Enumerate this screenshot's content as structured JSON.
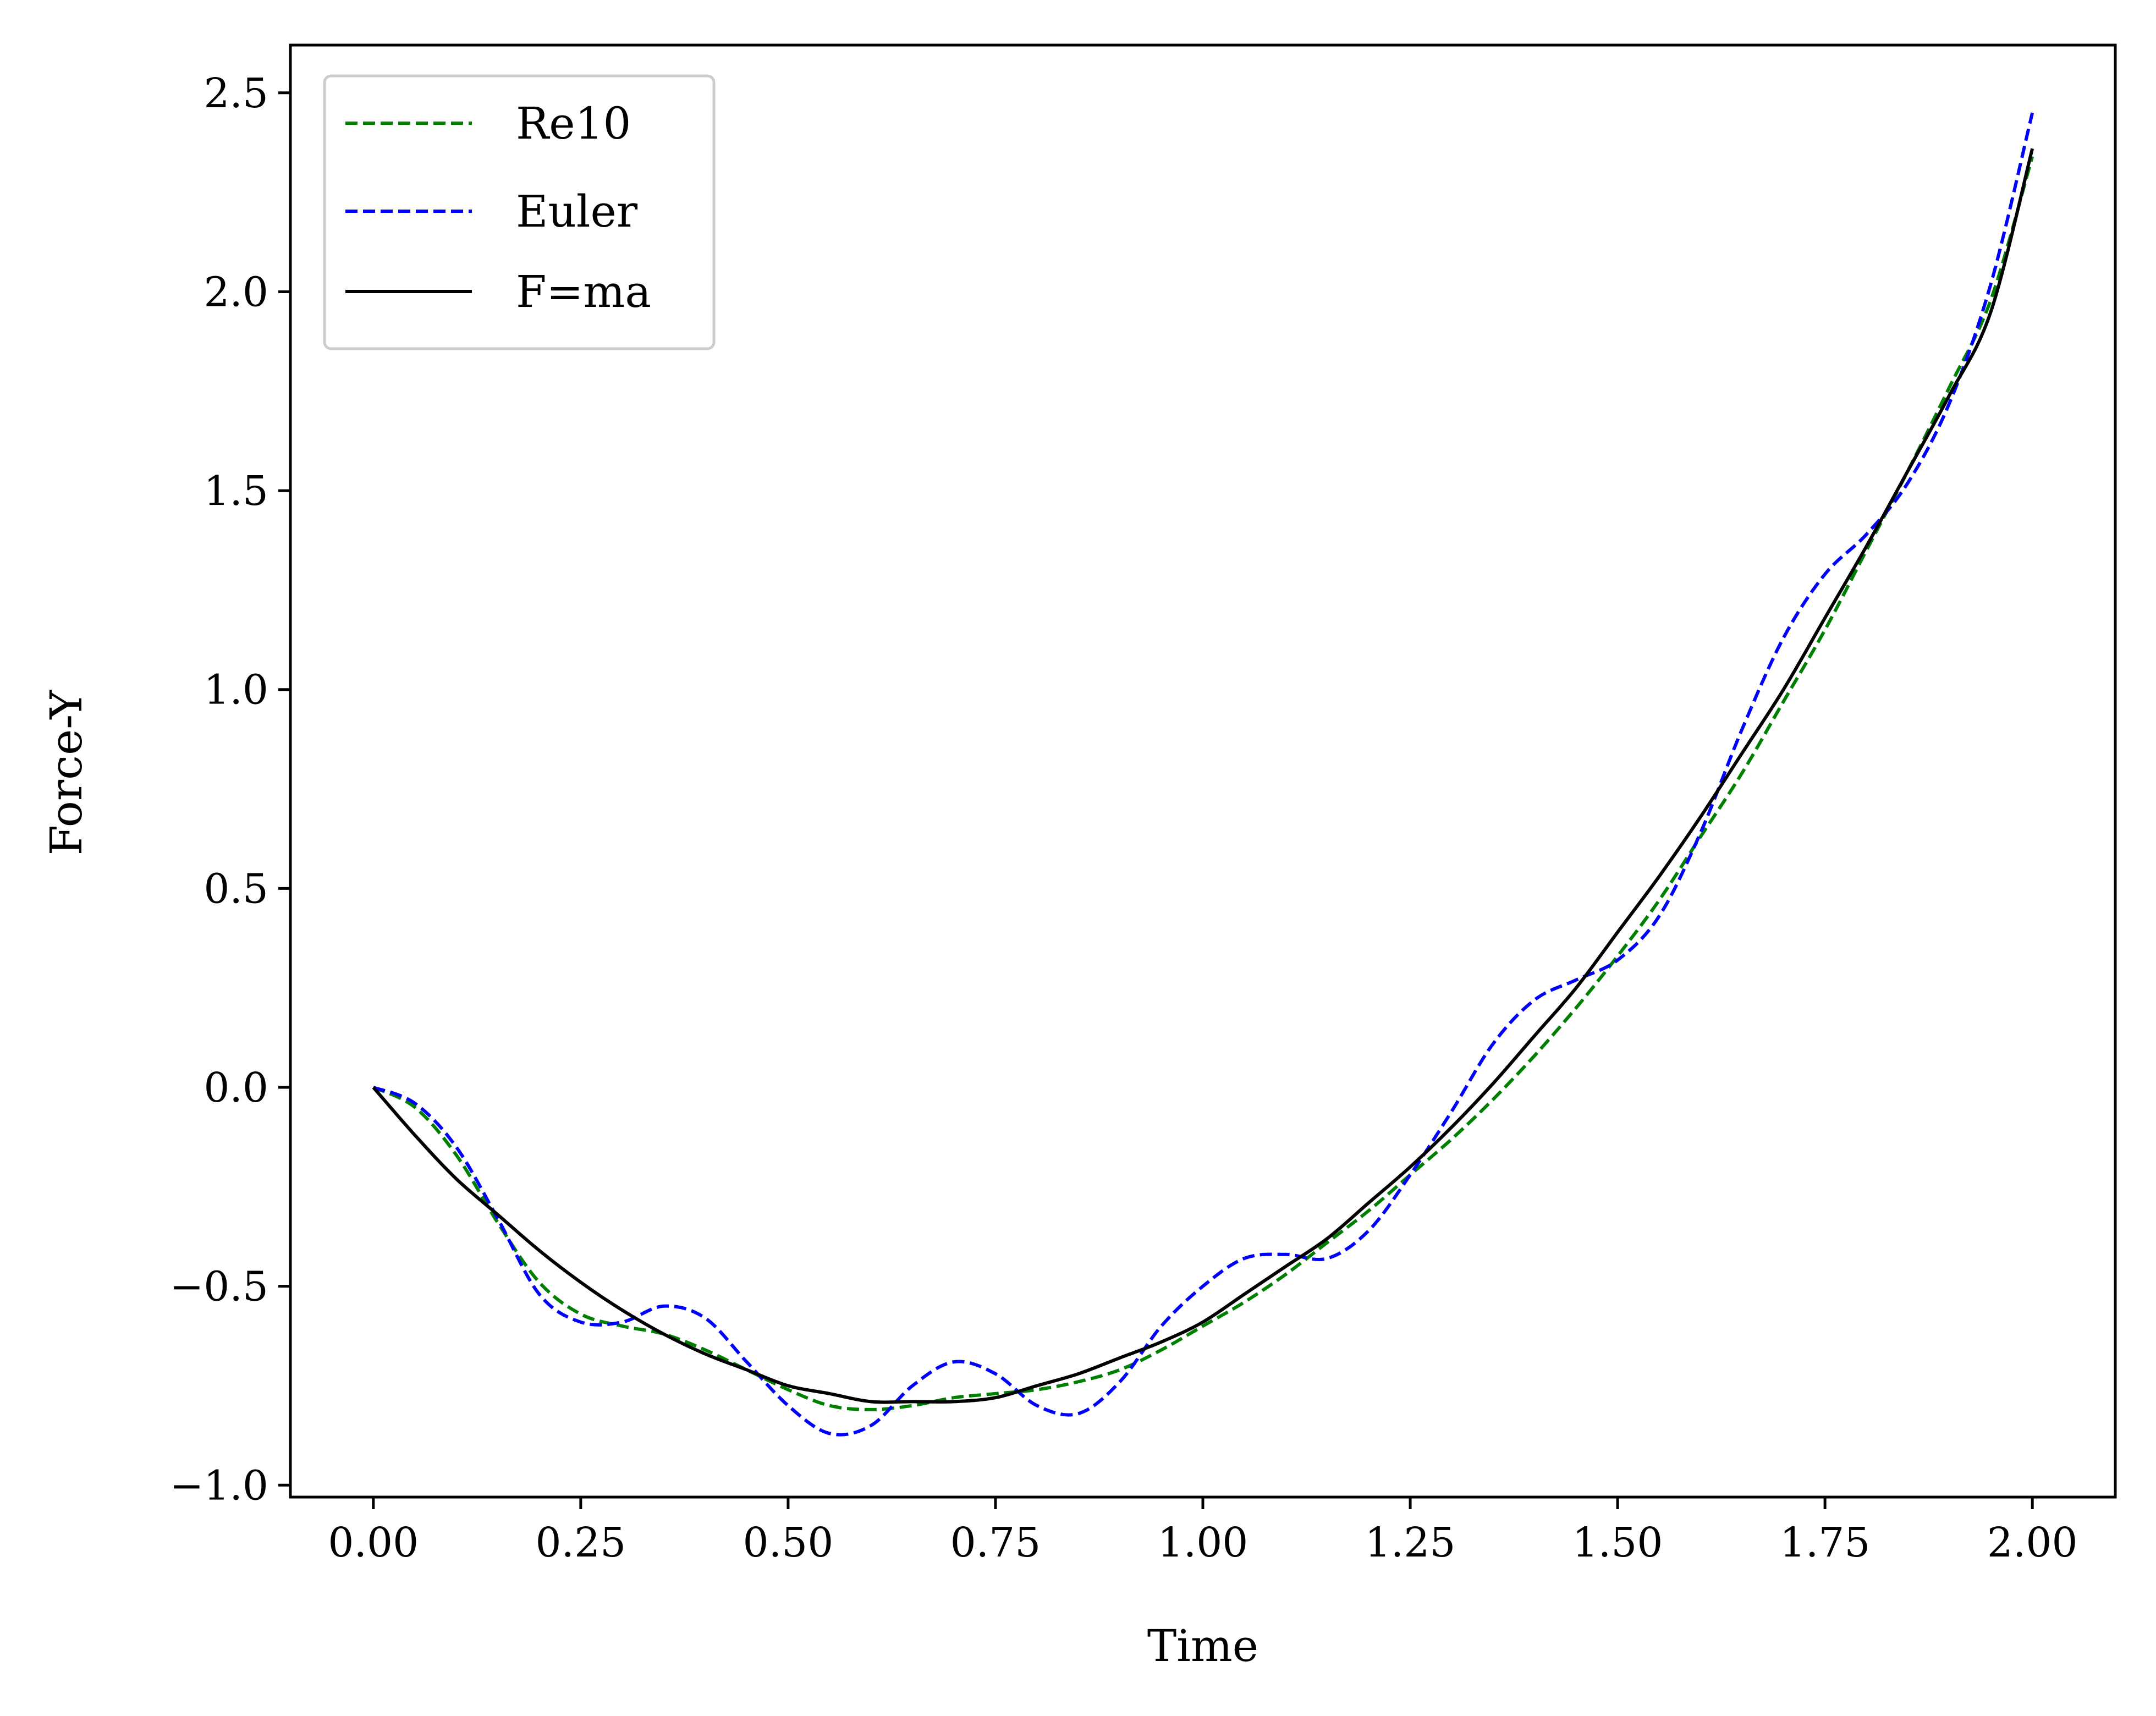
{
  "chart_data": {
    "type": "line",
    "xlabel": "Time",
    "ylabel": "Force-Y",
    "xlim": [
      -0.1,
      2.1
    ],
    "ylim": [
      -1.03,
      2.62
    ],
    "x_ticks": [
      0.0,
      0.25,
      0.5,
      0.75,
      1.0,
      1.25,
      1.5,
      1.75,
      2.0
    ],
    "x_tick_labels": [
      "0.00",
      "0.25",
      "0.50",
      "0.75",
      "1.00",
      "1.25",
      "1.50",
      "1.75",
      "2.00"
    ],
    "y_ticks": [
      -1.0,
      -0.5,
      0.0,
      0.5,
      1.0,
      1.5,
      2.0,
      2.5
    ],
    "y_tick_labels": [
      "−1.0",
      "−0.5",
      "0.0",
      "0.5",
      "1.0",
      "1.5",
      "2.0",
      "2.5"
    ],
    "grid": false,
    "legend_position": "top-left",
    "series": [
      {
        "name": "Re10",
        "color": "#008000",
        "style": "dashed",
        "x": [
          0.0,
          0.05,
          0.1,
          0.15,
          0.2,
          0.25,
          0.3,
          0.35,
          0.4,
          0.45,
          0.5,
          0.55,
          0.6,
          0.65,
          0.7,
          0.75,
          0.8,
          0.85,
          0.9,
          0.95,
          1.0,
          1.05,
          1.1,
          1.15,
          1.2,
          1.25,
          1.3,
          1.35,
          1.4,
          1.45,
          1.5,
          1.55,
          1.6,
          1.65,
          1.7,
          1.75,
          1.8,
          1.85,
          1.9,
          1.95,
          2.0
        ],
        "y": [
          0.0,
          -0.05,
          -0.17,
          -0.34,
          -0.49,
          -0.57,
          -0.6,
          -0.62,
          -0.66,
          -0.71,
          -0.76,
          -0.8,
          -0.81,
          -0.8,
          -0.78,
          -0.77,
          -0.76,
          -0.74,
          -0.71,
          -0.66,
          -0.6,
          -0.54,
          -0.47,
          -0.39,
          -0.31,
          -0.22,
          -0.13,
          -0.03,
          0.08,
          0.2,
          0.33,
          0.47,
          0.63,
          0.79,
          0.97,
          1.15,
          1.35,
          1.55,
          1.76,
          1.98,
          2.34
        ]
      },
      {
        "name": "Euler",
        "color": "#0000ff",
        "style": "dashed",
        "x": [
          0.0,
          0.05,
          0.1,
          0.15,
          0.2,
          0.25,
          0.3,
          0.35,
          0.4,
          0.45,
          0.5,
          0.55,
          0.6,
          0.65,
          0.7,
          0.75,
          0.8,
          0.85,
          0.9,
          0.95,
          1.0,
          1.05,
          1.1,
          1.15,
          1.2,
          1.25,
          1.3,
          1.35,
          1.4,
          1.45,
          1.5,
          1.55,
          1.6,
          1.65,
          1.7,
          1.75,
          1.8,
          1.85,
          1.9,
          1.95,
          2.0
        ],
        "y": [
          0.0,
          -0.04,
          -0.15,
          -0.33,
          -0.52,
          -0.59,
          -0.59,
          -0.55,
          -0.58,
          -0.69,
          -0.8,
          -0.87,
          -0.85,
          -0.75,
          -0.69,
          -0.72,
          -0.8,
          -0.82,
          -0.74,
          -0.6,
          -0.5,
          -0.43,
          -0.42,
          -0.43,
          -0.36,
          -0.22,
          -0.06,
          0.11,
          0.22,
          0.27,
          0.32,
          0.43,
          0.64,
          0.9,
          1.13,
          1.29,
          1.39,
          1.52,
          1.72,
          2.02,
          2.45
        ]
      },
      {
        "name": "F=ma",
        "color": "#000000",
        "style": "solid",
        "x": [
          0.0,
          0.05,
          0.1,
          0.15,
          0.2,
          0.25,
          0.3,
          0.35,
          0.4,
          0.45,
          0.5,
          0.55,
          0.6,
          0.65,
          0.7,
          0.75,
          0.8,
          0.85,
          0.9,
          0.95,
          1.0,
          1.05,
          1.1,
          1.15,
          1.2,
          1.25,
          1.3,
          1.35,
          1.4,
          1.45,
          1.5,
          1.55,
          1.6,
          1.65,
          1.7,
          1.75,
          1.8,
          1.85,
          1.9,
          1.95,
          2.0
        ],
        "y": [
          0.0,
          -0.12,
          -0.23,
          -0.32,
          -0.41,
          -0.49,
          -0.56,
          -0.62,
          -0.67,
          -0.71,
          -0.75,
          -0.77,
          -0.79,
          -0.79,
          -0.79,
          -0.78,
          -0.75,
          -0.72,
          -0.68,
          -0.64,
          -0.59,
          -0.52,
          -0.45,
          -0.38,
          -0.29,
          -0.2,
          -0.1,
          0.01,
          0.13,
          0.25,
          0.39,
          0.53,
          0.68,
          0.84,
          1.0,
          1.18,
          1.36,
          1.55,
          1.74,
          1.95,
          2.36
        ]
      }
    ]
  }
}
